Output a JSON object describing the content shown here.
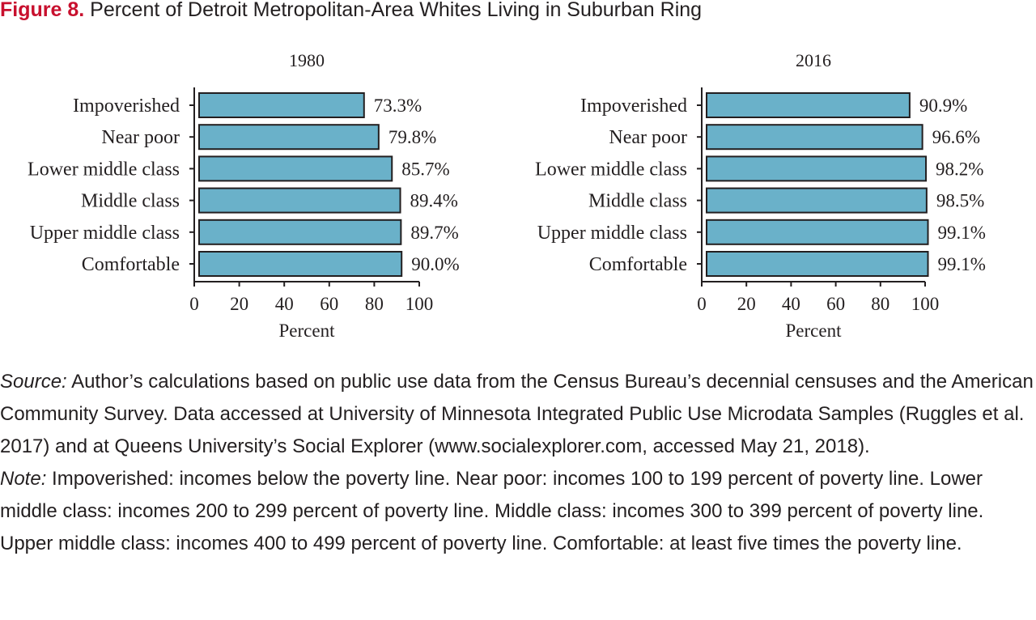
{
  "figure": {
    "label": "Figure 8.",
    "title": "Percent of Detroit Metropolitan-Area Whites Living in Suburban Ring"
  },
  "colors": {
    "bar_fill": "#6ab1c9",
    "bar_stroke": "#231f20",
    "figure_label": "#c8102e"
  },
  "chart_data": [
    {
      "type": "bar",
      "orientation": "horizontal",
      "title": "1980",
      "categories": [
        "Impoverished",
        "Near poor",
        "Lower middle class",
        "Middle class",
        "Upper middle class",
        "Comfortable"
      ],
      "values": [
        73.3,
        79.8,
        85.7,
        89.4,
        89.7,
        90.0
      ],
      "value_labels": [
        "73.3%",
        "79.8%",
        "85.7%",
        "89.4%",
        "89.7%",
        "90.0%"
      ],
      "xlabel": "Percent",
      "ylabel": "",
      "xlim": [
        0,
        100
      ],
      "xticks": [
        0,
        20,
        40,
        60,
        80,
        100
      ],
      "grid": false
    },
    {
      "type": "bar",
      "orientation": "horizontal",
      "title": "2016",
      "categories": [
        "Impoverished",
        "Near poor",
        "Lower middle class",
        "Middle class",
        "Upper middle class",
        "Comfortable"
      ],
      "values": [
        90.9,
        96.6,
        98.2,
        98.5,
        99.1,
        99.1
      ],
      "value_labels": [
        "90.9%",
        "96.6%",
        "98.2%",
        "98.5%",
        "99.1%",
        "99.1%"
      ],
      "xlabel": "Percent",
      "ylabel": "",
      "xlim": [
        0,
        100
      ],
      "xticks": [
        0,
        20,
        40,
        60,
        80,
        100
      ],
      "grid": false
    }
  ],
  "source": {
    "label": "Source:",
    "text": " Author’s calculations based on public use data from the Census Bureau’s decennial censuses and the American Community Survey. Data accessed at University of Minnesota Integrated Public Use Microdata Samples (Ruggles et al. 2017) and at Queens University’s Social Explorer (www.socialexplorer.com, accessed May 21, 2018)."
  },
  "note": {
    "label": "Note:",
    "text": " Impoverished: incomes below the poverty line. Near poor: incomes 100 to 199 percent of poverty line. Lower middle class: incomes 200 to 299 percent of poverty line. Middle class: incomes 300 to 399 percent of poverty line. Upper middle class: incomes 400 to 499 percent of poverty line. Comfortable: at least five times the poverty line."
  }
}
